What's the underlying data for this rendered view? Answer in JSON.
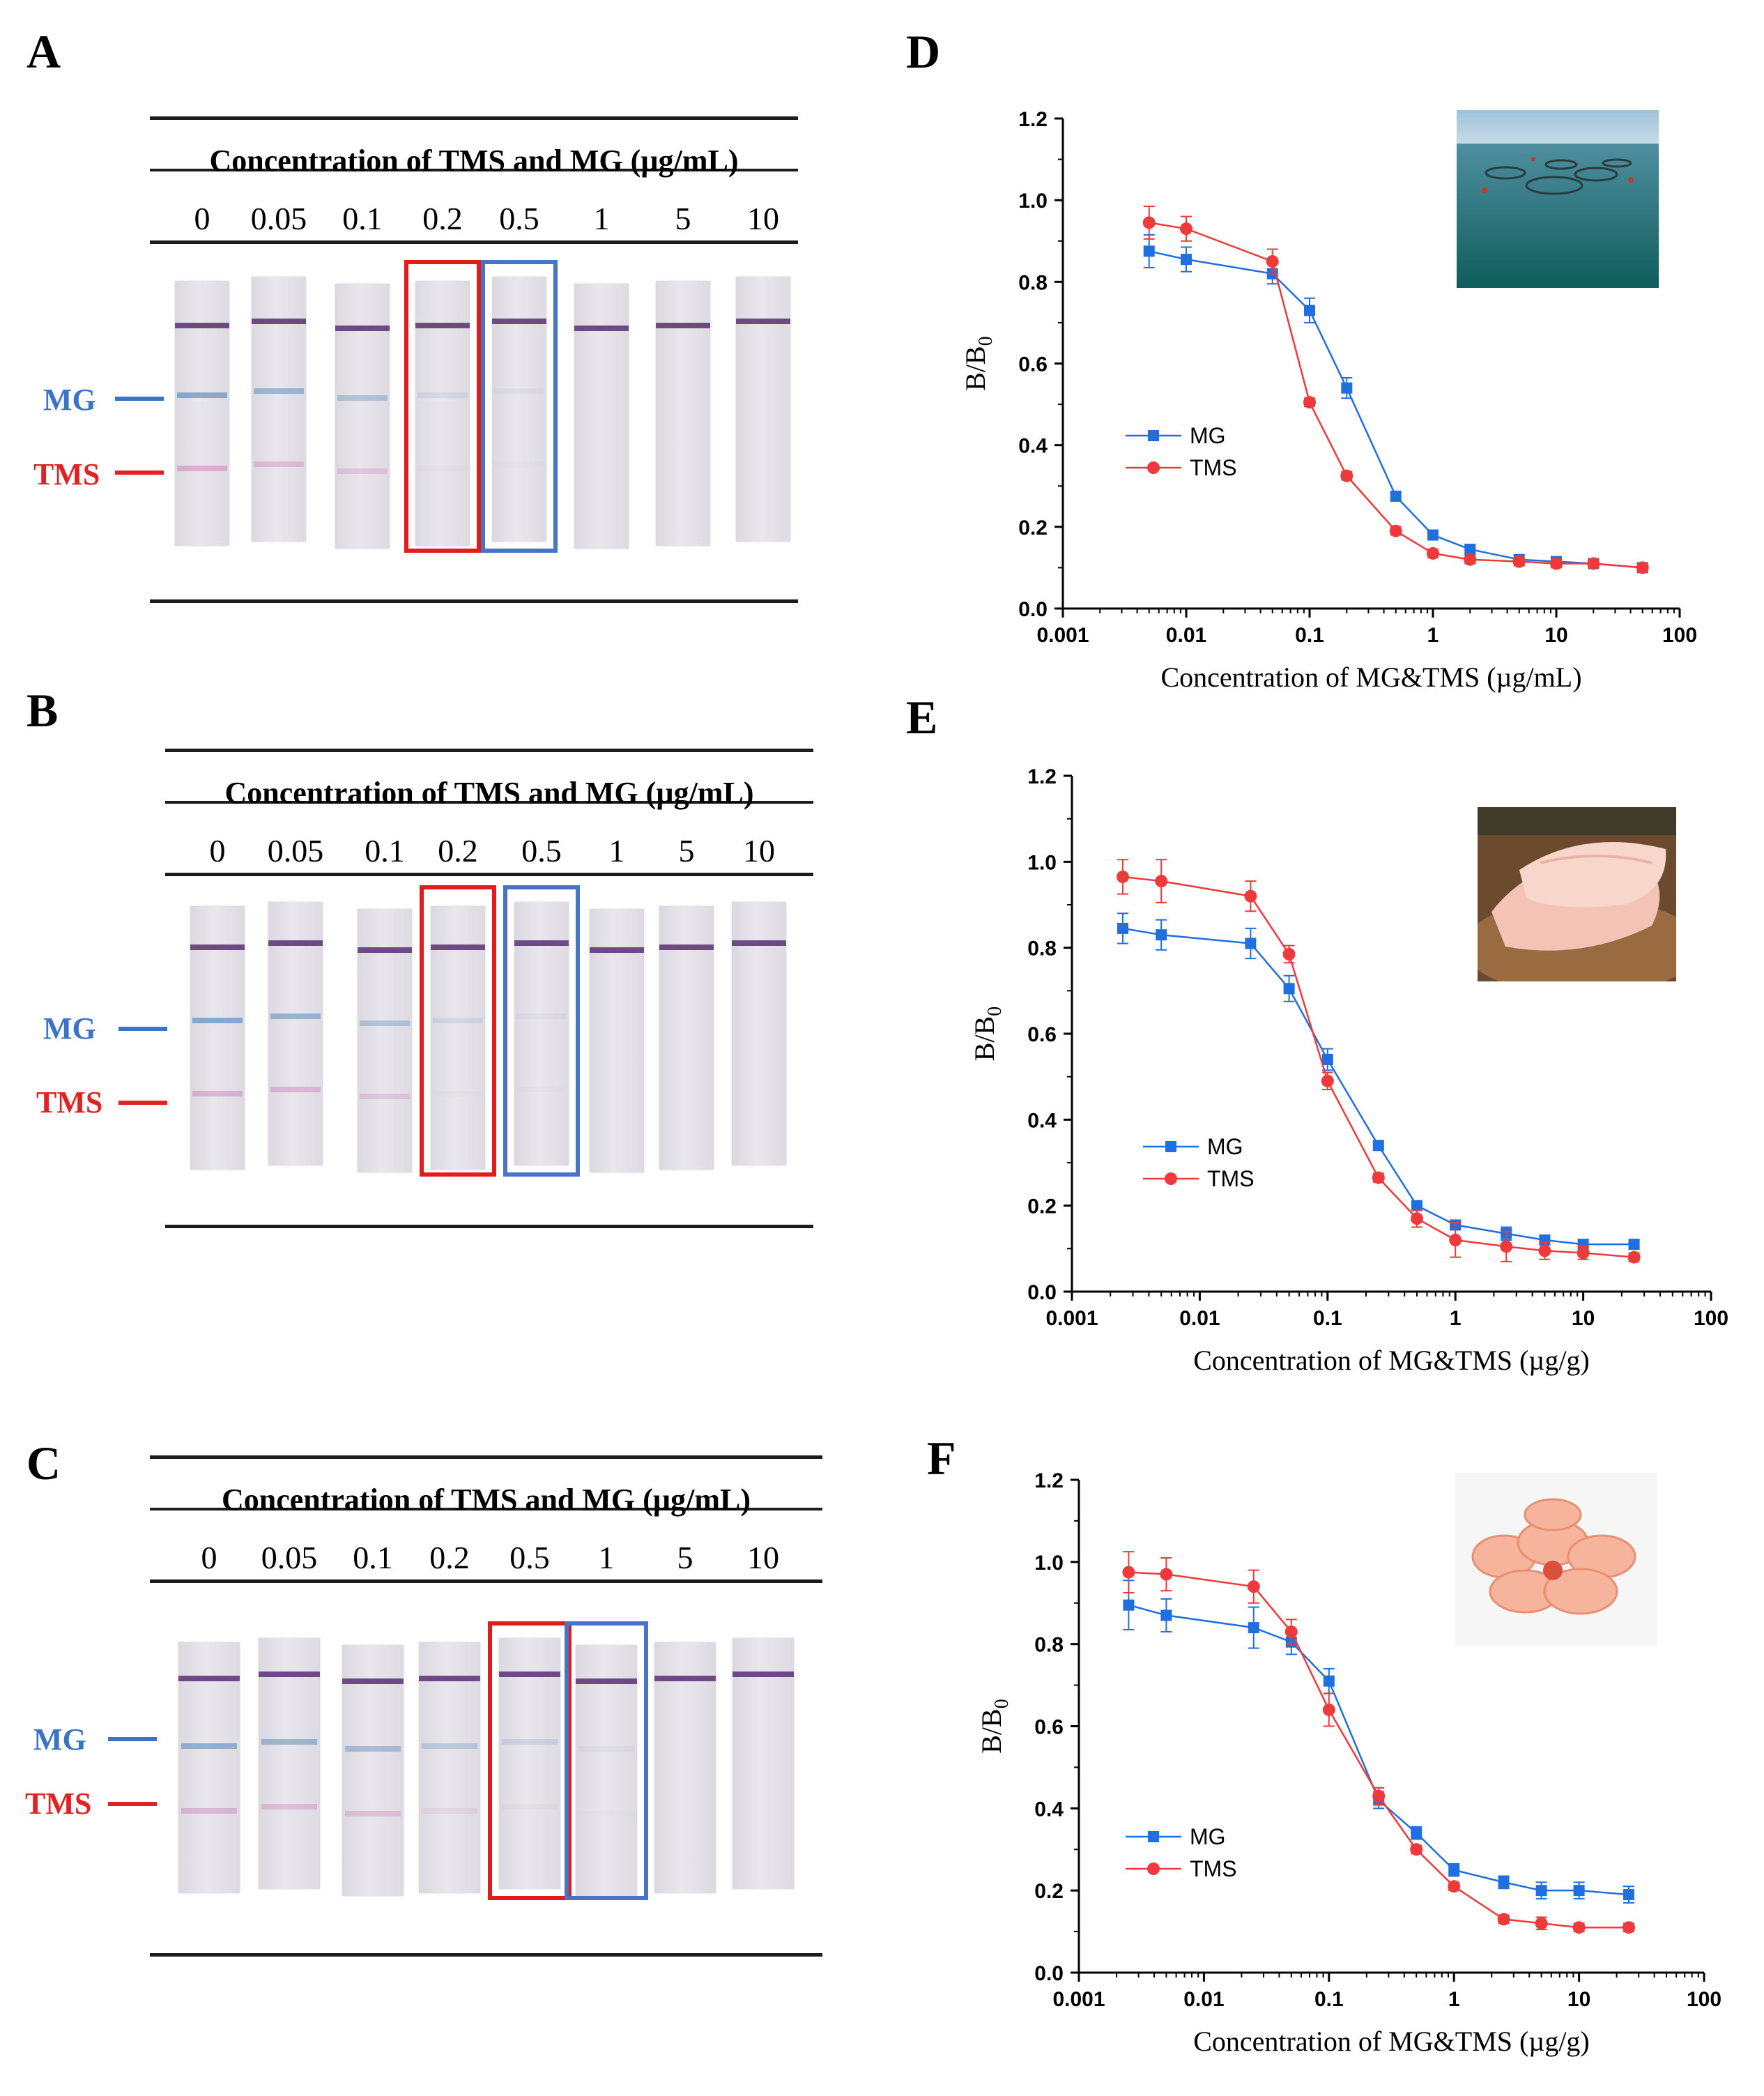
{
  "colors": {
    "mg": "#1f6fe0",
    "tms": "#ee3a3a",
    "mg_label": "#3b74c7",
    "tms_label": "#e22222",
    "box_red": "#e21b1b",
    "box_blue": "#4774c4"
  },
  "strip_panels": [
    {
      "label": "A",
      "title": "Concentration of TMS and MG (µg/mL)",
      "concentrations": [
        "0",
        "0.05",
        "0.1",
        "0.2",
        "0.5",
        "1",
        "5",
        "10"
      ],
      "mg_label": "MG",
      "tms_label": "TMS",
      "red_box_index": 3,
      "blue_box_index": 4,
      "mg_intensity": [
        0.9,
        0.7,
        0.5,
        0.18,
        0.1,
        0,
        0,
        0
      ],
      "tms_intensity": [
        0.8,
        0.6,
        0.45,
        0.05,
        0.03,
        0,
        0,
        0
      ]
    },
    {
      "label": "B",
      "title": "Concentration of TMS and MG (µg/mL)",
      "concentrations": [
        "0",
        "0.05",
        "0.1",
        "0.2",
        "0.5",
        "1",
        "5",
        "10"
      ],
      "mg_label": "MG",
      "tms_label": "TMS",
      "red_box_index": 3,
      "blue_box_index": 4,
      "mg_intensity": [
        0.9,
        0.75,
        0.5,
        0.2,
        0.1,
        0,
        0,
        0
      ],
      "tms_intensity": [
        0.75,
        0.7,
        0.45,
        0.05,
        0.03,
        0,
        0,
        0
      ]
    },
    {
      "label": "C",
      "title": "Concentration of TMS and MG (µg/mL)",
      "concentrations": [
        "0",
        "0.05",
        "0.1",
        "0.2",
        "0.5",
        "1",
        "5",
        "10"
      ],
      "mg_label": "MG",
      "tms_label": "TMS",
      "red_box_index": 4,
      "blue_box_index": 5,
      "mg_intensity": [
        0.8,
        0.7,
        0.6,
        0.4,
        0.25,
        0.1,
        0,
        0
      ],
      "tms_intensity": [
        0.7,
        0.6,
        0.55,
        0.2,
        0.1,
        0.03,
        0,
        0
      ]
    }
  ],
  "chart_data": [
    {
      "label": "D",
      "type": "line",
      "xscale": "log",
      "xlim": [
        0.001,
        100
      ],
      "ylim": [
        0,
        1.2
      ],
      "xticks": [
        "0.001",
        "0.01",
        "0.1",
        "1",
        "10",
        "100"
      ],
      "yticks": [
        "0.0",
        "0.2",
        "0.4",
        "0.6",
        "0.8",
        "1.0",
        "1.2"
      ],
      "xlabel": "Concentration of MG&TMS (µg/mL)",
      "ylabel_main": "B/B",
      "ylabel_sub": "0",
      "legend_position": "middle-left",
      "inset": "fish farm cages at sea",
      "series": [
        {
          "name": "MG",
          "marker": "square",
          "x": [
            0.005,
            0.01,
            0.05,
            0.1,
            0.2,
            0.5,
            1,
            2,
            5,
            10,
            20,
            50
          ],
          "y": [
            0.875,
            0.855,
            0.82,
            0.73,
            0.54,
            0.275,
            0.18,
            0.145,
            0.12,
            0.115,
            0.11,
            0.1
          ],
          "err": [
            0.04,
            0.03,
            0.025,
            0.03,
            0.025,
            0.01,
            0.01,
            0.01,
            0.01,
            0.01,
            0.01,
            0.01
          ]
        },
        {
          "name": "TMS",
          "marker": "circle",
          "x": [
            0.005,
            0.01,
            0.05,
            0.1,
            0.2,
            0.5,
            1,
            2,
            5,
            10,
            20,
            50
          ],
          "y": [
            0.945,
            0.93,
            0.85,
            0.505,
            0.325,
            0.19,
            0.135,
            0.12,
            0.115,
            0.11,
            0.11,
            0.1
          ],
          "err": [
            0.04,
            0.03,
            0.03,
            0.01,
            0.01,
            0.01,
            0.01,
            0.01,
            0.01,
            0.01,
            0.01,
            0.01
          ]
        }
      ]
    },
    {
      "label": "E",
      "type": "line",
      "xscale": "log",
      "xlim": [
        0.001,
        100
      ],
      "ylim": [
        0,
        1.2
      ],
      "xticks": [
        "0.001",
        "0.01",
        "0.1",
        "1",
        "10",
        "100"
      ],
      "yticks": [
        "0.0",
        "0.2",
        "0.4",
        "0.6",
        "0.8",
        "1.0",
        "1.2"
      ],
      "xlabel": "Concentration of MG&TMS (µg/g)",
      "ylabel_main": "B/B",
      "ylabel_sub": "0",
      "legend_position": "middle-left",
      "inset": "raw fish fillet",
      "series": [
        {
          "name": "MG",
          "marker": "square",
          "x": [
            0.0025,
            0.005,
            0.025,
            0.05,
            0.1,
            0.25,
            0.5,
            1,
            2.5,
            5,
            10,
            25
          ],
          "y": [
            0.845,
            0.83,
            0.81,
            0.705,
            0.54,
            0.34,
            0.2,
            0.155,
            0.135,
            0.12,
            0.11,
            0.11
          ],
          "err": [
            0.035,
            0.035,
            0.035,
            0.03,
            0.025,
            0.01,
            0.01,
            0.01,
            0.015,
            0.01,
            0.01,
            0.01
          ]
        },
        {
          "name": "TMS",
          "marker": "circle",
          "x": [
            0.0025,
            0.005,
            0.025,
            0.05,
            0.1,
            0.25,
            0.5,
            1,
            2.5,
            5,
            10,
            25
          ],
          "y": [
            0.965,
            0.955,
            0.92,
            0.785,
            0.49,
            0.265,
            0.17,
            0.12,
            0.105,
            0.095,
            0.09,
            0.08
          ],
          "err": [
            0.04,
            0.05,
            0.035,
            0.02,
            0.02,
            0.01,
            0.02,
            0.04,
            0.035,
            0.02,
            0.015,
            0.01
          ]
        }
      ]
    },
    {
      "label": "F",
      "type": "line",
      "xscale": "log",
      "xlim": [
        0.001,
        100
      ],
      "ylim": [
        0,
        1.2
      ],
      "xticks": [
        "0.001",
        "0.01",
        "0.1",
        "1",
        "10",
        "100"
      ],
      "yticks": [
        "0.0",
        "0.2",
        "0.4",
        "0.6",
        "0.8",
        "1.0",
        "1.2"
      ],
      "xlabel": "Concentration of MG&TMS (µg/g)",
      "ylabel_main": "B/B",
      "ylabel_sub": "0",
      "legend_position": "lower-left",
      "inset": "cooked shrimp",
      "series": [
        {
          "name": "MG",
          "marker": "square",
          "x": [
            0.0025,
            0.005,
            0.025,
            0.05,
            0.1,
            0.25,
            0.5,
            1,
            2.5,
            5,
            10,
            25
          ],
          "y": [
            0.895,
            0.87,
            0.84,
            0.805,
            0.71,
            0.42,
            0.34,
            0.25,
            0.22,
            0.2,
            0.2,
            0.19
          ],
          "err": [
            0.06,
            0.04,
            0.05,
            0.03,
            0.03,
            0.02,
            0.015,
            0.015,
            0.015,
            0.02,
            0.02,
            0.02
          ]
        },
        {
          "name": "TMS",
          "marker": "circle",
          "x": [
            0.0025,
            0.005,
            0.025,
            0.05,
            0.1,
            0.25,
            0.5,
            1,
            2.5,
            5,
            10,
            25
          ],
          "y": [
            0.975,
            0.97,
            0.94,
            0.83,
            0.64,
            0.43,
            0.3,
            0.21,
            0.13,
            0.12,
            0.11,
            0.11
          ],
          "err": [
            0.05,
            0.04,
            0.04,
            0.03,
            0.04,
            0.02,
            0.01,
            0.01,
            0.01,
            0.015,
            0.01,
            0.01
          ]
        }
      ]
    }
  ]
}
